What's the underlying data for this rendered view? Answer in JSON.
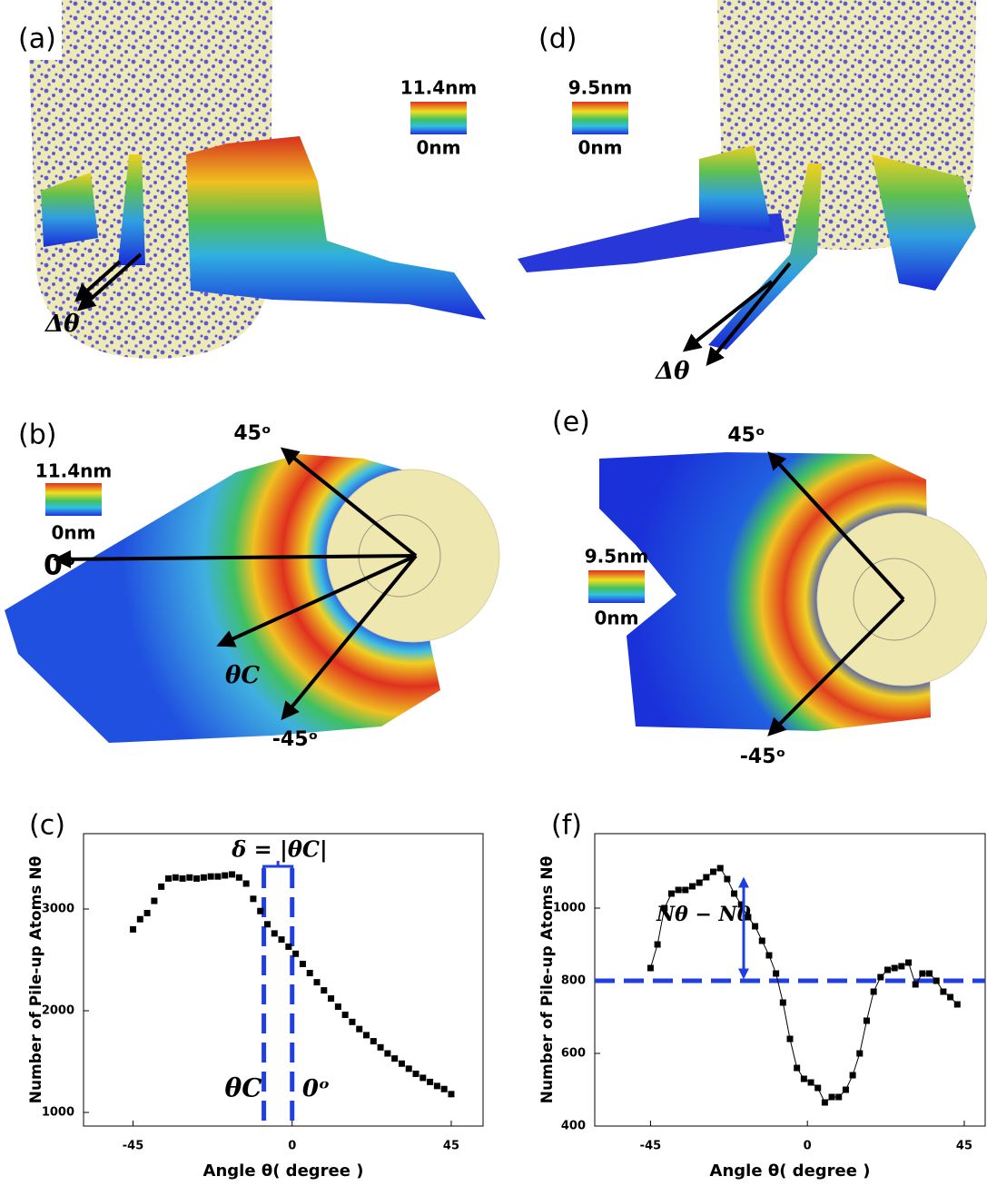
{
  "panels": [
    {
      "label": "(a)",
      "colorbar": {
        "max": "11.4nm",
        "min": "0nm"
      },
      "annotations": [
        "Δθ"
      ]
    },
    {
      "label": "(d)",
      "colorbar": {
        "max": "9.5nm",
        "min": "0nm"
      },
      "annotations": [
        "Δθ"
      ]
    },
    {
      "label": "(b)",
      "colorbar": {
        "max": "11.4nm",
        "min": "0nm"
      },
      "annotations": [
        "45ᵒ",
        "0ᵒ",
        "θC",
        "-45ᵒ"
      ]
    },
    {
      "label": "(e)",
      "colorbar": {
        "max": "9.5nm",
        "min": "0nm"
      },
      "annotations": [
        "45ᵒ",
        "-45ᵒ"
      ]
    },
    {
      "label": "(c)"
    },
    {
      "label": "(f)"
    }
  ],
  "chart_data": [
    {
      "type": "scatter",
      "x_label": "Angle θ( degree )",
      "y_label": "Number of Pile-up Atoms Nθ",
      "x": [
        -45,
        -43,
        -41,
        -39,
        -37,
        -35,
        -33,
        -31,
        -29,
        -27,
        -25,
        -23,
        -21,
        -19,
        -17,
        -15,
        -13,
        -11,
        -9,
        -7,
        -5,
        -3,
        -1,
        1,
        3,
        5,
        7,
        9,
        11,
        13,
        15,
        17,
        19,
        21,
        23,
        25,
        27,
        29,
        31,
        33,
        35,
        37,
        39,
        41,
        43,
        45
      ],
      "series": [
        {
          "color": "#000000",
          "values": [
            2800,
            2900,
            2960,
            3080,
            3220,
            3300,
            3310,
            3300,
            3310,
            3300,
            3310,
            3320,
            3320,
            3330,
            3340,
            3310,
            3250,
            3100,
            2980,
            2850,
            2760,
            2700,
            2630,
            2560,
            2460,
            2370,
            2280,
            2200,
            2120,
            2040,
            1960,
            1890,
            1820,
            1760,
            1700,
            1640,
            1580,
            1530,
            1480,
            1430,
            1380,
            1340,
            1300,
            1260,
            1230,
            1180
          ]
        }
      ],
      "connected": false,
      "xlim": [
        -59,
        54
      ],
      "xticks": [
        -45,
        0,
        45
      ],
      "ylim": [
        866,
        3741
      ],
      "yticks": [
        1000,
        2000,
        3000
      ],
      "reference_lines": {
        "axis": "x",
        "values": [
          -8,
          0
        ],
        "color": "#1f3fe0"
      },
      "annotations": [
        "δ = |θC|",
        "θC",
        "0ᵒ"
      ]
    },
    {
      "type": "scatter",
      "x_label": "Angle θ( degree )",
      "y_label": "Number of Pile-up Atoms Nθ",
      "x": [
        -45,
        -43,
        -41,
        -39,
        -37,
        -35,
        -33,
        -31,
        -29,
        -27,
        -25,
        -23,
        -21,
        -19,
        -17,
        -15,
        -13,
        -11,
        -9,
        -7,
        -5,
        -3,
        -1,
        1,
        3,
        5,
        7,
        9,
        11,
        13,
        15,
        17,
        19,
        21,
        23,
        25,
        27,
        29,
        31,
        33,
        35,
        37,
        39,
        41,
        43
      ],
      "series": [
        {
          "color": "#000000",
          "values": [
            835,
            900,
            1000,
            1040,
            1050,
            1050,
            1060,
            1070,
            1085,
            1100,
            1110,
            1080,
            1040,
            1010,
            975,
            950,
            910,
            870,
            820,
            740,
            640,
            560,
            530,
            520,
            505,
            465,
            480,
            480,
            500,
            540,
            600,
            690,
            770,
            810,
            830,
            835,
            840,
            850,
            790,
            820,
            820,
            800,
            770,
            755,
            735
          ]
        }
      ],
      "connected": true,
      "xlim": [
        -61,
        51
      ],
      "xticks": [
        -45,
        0,
        45
      ],
      "ylim": [
        400,
        1205
      ],
      "yticks": [
        400,
        600,
        800,
        1000
      ],
      "reference_lines": {
        "axis": "y",
        "values": [
          800
        ],
        "color": "#1f3fe0"
      },
      "annotations": [
        "Nθ − N0"
      ]
    }
  ]
}
